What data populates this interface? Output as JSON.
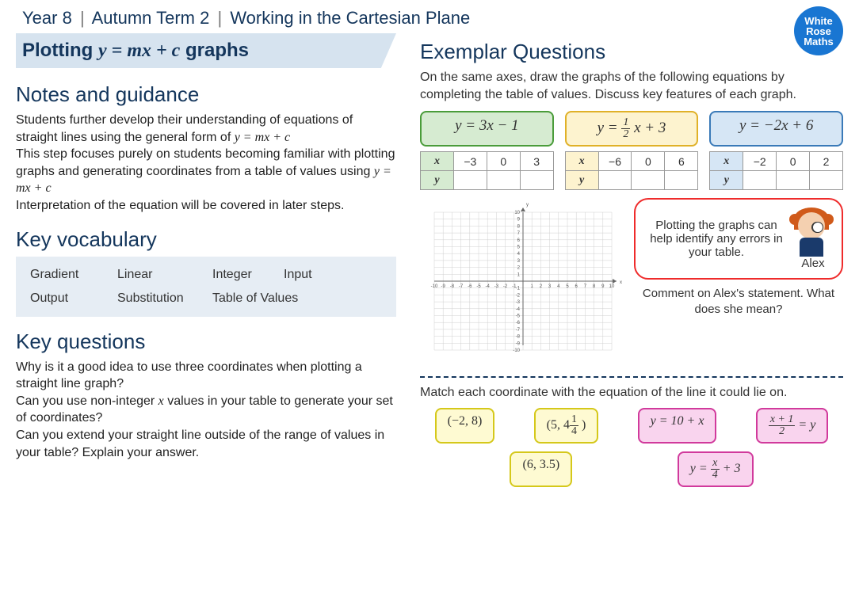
{
  "header": {
    "year": "Year 8",
    "term": "Autumn Term 2",
    "topic": "Working in the Cartesian Plane"
  },
  "logo": {
    "line1": "White",
    "line2": "Rose",
    "line3": "Maths"
  },
  "title": {
    "prefix": "Plotting ",
    "equation": "y = mx + c",
    "suffix": " graphs"
  },
  "notes": {
    "heading": "Notes and guidance",
    "p1a": "Students further develop their understanding of equations of straight lines using the general form of ",
    "p1eq": "y = mx + c",
    "p2a": "This step focuses purely on students becoming familiar with plotting graphs and generating coordinates from a table of values using ",
    "p2eq": "y = mx + c",
    "p3": "Interpretation of the equation will be covered in later steps."
  },
  "vocab": {
    "heading": "Key vocabulary",
    "row1": [
      "Gradient",
      "Linear",
      "Integer",
      "Input"
    ],
    "row2": [
      "Output",
      "Substitution",
      "Table of Values",
      ""
    ]
  },
  "questions": {
    "heading": "Key questions",
    "q1": "Why is it a good idea to use three coordinates when plotting a straight line graph?",
    "q2a": "Can you use non-integer ",
    "q2x": "x",
    "q2b": " values in your table to generate your set of coordinates?",
    "q3": "Can you extend your straight line outside of the range of values in your table? Explain your answer."
  },
  "exemplar": {
    "heading": "Exemplar Questions",
    "intro": "On the same axes, draw the graphs of the following equations by completing the table of values. Discuss key features of each graph.",
    "equations": {
      "green": "y = 3x − 1",
      "yellow_pre": "y = ",
      "yellow_num": "1",
      "yellow_den": "2",
      "yellow_post": " x + 3",
      "blue": "y = −2x + 6"
    },
    "tables": {
      "green_x": [
        "−3",
        "0",
        "3"
      ],
      "yellow_x": [
        "−6",
        "0",
        "6"
      ],
      "blue_x": [
        "−2",
        "0",
        "2"
      ]
    },
    "graph": {
      "xmin": -10,
      "xmax": 10,
      "ymin": -10,
      "ymax": 10,
      "grid_color": "#d0d0d0",
      "axis_color": "#666",
      "tick_fontsize": 6
    },
    "alex": {
      "speech": "Plotting the graphs can help identify any errors in your table.",
      "name": "Alex",
      "caption": "Comment on Alex's statement. What does she mean?"
    },
    "match": {
      "prompt": "Match each coordinate with the equation of the line it could lie on.",
      "coords": {
        "c1": "(−2, 8)",
        "c2_pre": "(5, 4",
        "c2_num": "1",
        "c2_den": "4",
        "c2_post": " )",
        "c3": "(6, 3.5)"
      },
      "eqs": {
        "e1": "y = 10 + x",
        "e2_num": "x + 1",
        "e2_den": "2",
        "e2_post": " = y",
        "e3_pre": "y = ",
        "e3_num": "x",
        "e3_den": "4",
        "e3_post": " + 3"
      }
    }
  }
}
